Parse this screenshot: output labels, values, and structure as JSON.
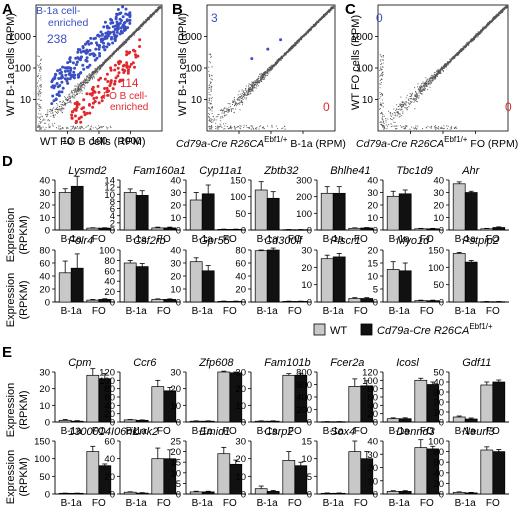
{
  "colors": {
    "blue": "#3a4fc4",
    "red": "#e0282e",
    "gray": "#c8c8c8",
    "black": "#111111",
    "dots": "#555555"
  },
  "scatter_axis": {
    "ticks": [
      "10",
      "100",
      "1000"
    ],
    "y_tick_label": "1000",
    "x_ticks_a": [
      "10",
      "100",
      "1000"
    ]
  },
  "panels": {
    "A": {
      "letter": "A",
      "ylabel": "WT B-1a cells (RPM)",
      "xlabel": "WT FO B cells (RPM)",
      "upper_count": "238",
      "lower_count": "114",
      "upper_note_1": "B-1a cell-",
      "upper_note_2": "enriched",
      "lower_note_1": "114",
      "lower_note_2": "FO B cell-",
      "lower_note_3": "enriched"
    },
    "B": {
      "letter": "B",
      "ylabel": "WT B-1a cells (RPM)",
      "xlabel_1": "Cd79a-Cre R26CA",
      "xlabel_sup": "Ebf1/+",
      "xlabel_2": " B-1a (RPM)",
      "upper_count": "3",
      "lower_count": "0"
    },
    "C": {
      "letter": "C",
      "ylabel": "WT FO cells (RPM)",
      "xlabel_1": "Cd79a-Cre R26CA",
      "xlabel_sup": "Ebf1/+",
      "xlabel_2": " FO (RPM)",
      "upper_count": "0",
      "lower_count": "0"
    },
    "D": {
      "letter": "D",
      "ylabel_1": "Expression",
      "ylabel_2": "(RPKM)"
    },
    "E": {
      "letter": "E",
      "ylabel_1": "Expression",
      "ylabel_2": "(RPKM)"
    }
  },
  "legend": {
    "wt": "WT",
    "mut_1": "Cd79a-Cre R26CA",
    "mut_sup": "Ebf1/+"
  },
  "group_labels": [
    "B-1a",
    "FO"
  ],
  "chart_data": [
    {
      "panel": "A",
      "type": "scatter",
      "xlabel": "WT FO B cells (RPM)",
      "ylabel": "WT B-1a cells (RPM)",
      "log": true,
      "xlim": [
        1,
        10000
      ],
      "ylim": [
        1,
        10000
      ],
      "series": [
        {
          "name": "B-1a cell-enriched",
          "count": 238
        },
        {
          "name": "FO B cell-enriched",
          "count": 114
        }
      ]
    },
    {
      "panel": "B",
      "type": "scatter",
      "log": true,
      "xlim": [
        1,
        10000
      ],
      "ylim": [
        1,
        10000
      ],
      "up": 3,
      "down": 0
    },
    {
      "panel": "C",
      "type": "scatter",
      "log": true,
      "xlim": [
        1,
        10000
      ],
      "ylim": [
        1,
        10000
      ],
      "up": 0,
      "down": 0
    },
    {
      "panel": "D",
      "type": "bar",
      "categories": [
        "B-1a",
        "FO"
      ],
      "series_names": [
        "WT",
        "Cd79a-Cre R26CA Ebf1/+"
      ],
      "genes": [
        {
          "name": "Lysmd2",
          "ymax": 40,
          "ticks": [
            0,
            10,
            20,
            30,
            40
          ],
          "wt": [
            30,
            1.5
          ],
          "mut": [
            35,
            1.5
          ],
          "wt_err": [
            3,
            0.3
          ],
          "mut_err": [
            8,
            0.3
          ]
        },
        {
          "name": "Fam160a1",
          "ymax": 14,
          "ticks": [
            0,
            2,
            4,
            6,
            8,
            10,
            12,
            14
          ],
          "wt": [
            10.5,
            0.6
          ],
          "mut": [
            9.7,
            0.6
          ],
          "wt_err": [
            1,
            0.2
          ],
          "mut_err": [
            1.3,
            0.2
          ]
        },
        {
          "name": "Cyp11a1",
          "ymax": 40,
          "ticks": [
            0,
            10,
            20,
            30,
            40
          ],
          "wt": [
            24,
            0.5
          ],
          "mut": [
            29,
            0.5
          ],
          "wt_err": [
            6,
            0.2
          ],
          "mut_err": [
            7,
            0.2
          ]
        },
        {
          "name": "Zbtb32",
          "ymax": 150,
          "ticks": [
            0,
            50,
            100,
            150
          ],
          "wt": [
            120,
            1
          ],
          "mut": [
            95,
            1
          ],
          "wt_err": [
            25,
            0.5
          ],
          "mut_err": [
            20,
            0.5
          ]
        },
        {
          "name": "Bhlhe41",
          "ymax": 300,
          "ticks": [
            0,
            100,
            200,
            300
          ],
          "wt": [
            220,
            10
          ],
          "mut": [
            220,
            12
          ],
          "wt_err": [
            40,
            3
          ],
          "mut_err": [
            40,
            3
          ]
        },
        {
          "name": "Tbc1d9",
          "ymax": 40,
          "ticks": [
            0,
            10,
            20,
            30,
            40
          ],
          "wt": [
            27,
            1
          ],
          "mut": [
            29,
            1
          ],
          "wt_err": [
            4,
            0.3
          ],
          "mut_err": [
            3,
            0.3
          ]
        },
        {
          "name": "Ahr",
          "ymax": 40,
          "ticks": [
            0,
            10,
            20,
            30,
            40
          ],
          "wt": [
            37,
            1
          ],
          "mut": [
            30,
            2
          ],
          "wt_err": [
            1.5,
            0.3
          ],
          "mut_err": [
            1,
            0.5
          ]
        },
        {
          "name": "Folr4",
          "ymax": 80,
          "ticks": [
            0,
            20,
            40,
            60,
            80
          ],
          "wt": [
            45,
            3
          ],
          "mut": [
            52,
            4
          ],
          "wt_err": [
            18,
            1
          ],
          "mut_err": [
            22,
            1
          ]
        },
        {
          "name": "Csf2rb",
          "ymax": 100,
          "ticks": [
            0,
            20,
            40,
            60,
            80,
            100
          ],
          "wt": [
            75,
            5
          ],
          "mut": [
            68,
            5
          ],
          "wt_err": [
            5,
            1
          ],
          "mut_err": [
            6,
            1
          ]
        },
        {
          "name": "Gpr55",
          "ymax": 40,
          "ticks": [
            0,
            10,
            20,
            30,
            40
          ],
          "wt": [
            31,
            0.5
          ],
          "mut": [
            24,
            0.5
          ],
          "wt_err": [
            3,
            0.2
          ],
          "mut_err": [
            4,
            0.2
          ]
        },
        {
          "name": "Cd300lf",
          "ymax": 80,
          "ticks": [
            0,
            20,
            40,
            60,
            80
          ],
          "wt": [
            79,
            1
          ],
          "mut": [
            80,
            1
          ],
          "wt_err": [
            1,
            0.3
          ],
          "mut_err": [
            3,
            0.3
          ]
        },
        {
          "name": "Plscr1",
          "ymax": 30,
          "ticks": [
            0,
            10,
            20,
            30
          ],
          "wt": [
            25,
            2
          ],
          "mut": [
            26,
            2
          ],
          "wt_err": [
            2,
            0.5
          ],
          "mut_err": [
            2,
            0.5
          ]
        },
        {
          "name": "Myo1d",
          "ymax": 20,
          "ticks": [
            0,
            5,
            10,
            15,
            20
          ],
          "wt": [
            12.5,
            0.5
          ],
          "mut": [
            12,
            0.5
          ],
          "wt_err": [
            3,
            0.2
          ],
          "mut_err": [
            3,
            0.2
          ]
        },
        {
          "name": "Pstpip2",
          "ymax": 150,
          "ticks": [
            0,
            50,
            100,
            150
          ],
          "wt": [
            140,
            1
          ],
          "mut": [
            115,
            1
          ],
          "wt_err": [
            3,
            0.5
          ],
          "mut_err": [
            5,
            0.5
          ]
        }
      ]
    },
    {
      "panel": "E",
      "type": "bar",
      "categories": [
        "B-1a",
        "FO"
      ],
      "series_names": [
        "WT",
        "Cd79a-Cre R26CA Ebf1/+"
      ],
      "genes": [
        {
          "name": "Cpm",
          "ymax": 30,
          "ticks": [
            0,
            10,
            20,
            30
          ],
          "wt": [
            1,
            28
          ],
          "mut": [
            0.5,
            26
          ],
          "wt_err": [
            0.5,
            4
          ],
          "mut_err": [
            0.3,
            3
          ]
        },
        {
          "name": "Ccr6",
          "ymax": 120,
          "ticks": [
            0,
            20,
            40,
            60,
            80,
            100,
            120
          ],
          "wt": [
            5,
            85
          ],
          "mut": [
            4,
            75
          ],
          "wt_err": [
            1,
            15
          ],
          "mut_err": [
            1,
            8
          ]
        },
        {
          "name": "Zfp608",
          "ymax": 30,
          "ticks": [
            0,
            10,
            20,
            30
          ],
          "wt": [
            0.5,
            30
          ],
          "mut": [
            0.5,
            29.5
          ],
          "wt_err": [
            0.2,
            0.5
          ],
          "mut_err": [
            0.2,
            0.5
          ]
        },
        {
          "name": "Fam101b",
          "ymax": 30,
          "ticks": [
            0,
            10,
            20,
            30
          ],
          "wt": [
            0.5,
            28
          ],
          "mut": [
            0.5,
            28
          ],
          "wt_err": [
            0.2,
            1
          ],
          "mut_err": [
            0.2,
            1
          ]
        },
        {
          "name": "Fcer2a",
          "ymax": 800,
          "ticks": [
            0,
            200,
            400,
            600,
            800
          ],
          "wt": [
            5,
            570
          ],
          "mut": [
            5,
            580
          ],
          "wt_err": [
            2,
            120
          ],
          "mut_err": [
            2,
            80
          ]
        },
        {
          "name": "Icosl",
          "ymax": 120,
          "ticks": [
            0,
            20,
            40,
            60,
            80,
            100,
            120
          ],
          "wt": [
            8,
            100
          ],
          "mut": [
            8,
            90
          ],
          "wt_err": [
            2,
            5
          ],
          "mut_err": [
            2,
            6
          ]
        },
        {
          "name": "Gdf11",
          "ymax": 50,
          "ticks": [
            0,
            10,
            20,
            30,
            40,
            50
          ],
          "wt": [
            5,
            37
          ],
          "mut": [
            3,
            40
          ],
          "wt_err": [
            1,
            3
          ],
          "mut_err": [
            1,
            2
          ]
        },
        {
          "name": "1300014I06rik",
          "ymax": 150,
          "ticks": [
            0,
            50,
            100,
            150
          ],
          "wt": [
            2,
            120
          ],
          "mut": [
            2,
            80
          ],
          "wt_err": [
            0.5,
            15
          ],
          "mut_err": [
            0.5,
            5
          ]
        },
        {
          "name": "Lrrk2",
          "ymax": 60,
          "ticks": [
            0,
            20,
            40,
            60
          ],
          "wt": [
            2,
            40
          ],
          "mut": [
            1,
            40
          ],
          "wt_err": [
            0.5,
            12
          ],
          "mut_err": [
            0.5,
            10
          ]
        },
        {
          "name": "Emid1",
          "ymax": 25,
          "ticks": [
            0,
            5,
            10,
            15,
            20,
            25
          ],
          "wt": [
            1,
            19
          ],
          "mut": [
            1,
            14
          ],
          "wt_err": [
            0.3,
            3
          ],
          "mut_err": [
            0.3,
            2
          ]
        },
        {
          "name": "Csrp2",
          "ymax": 30,
          "ticks": [
            0,
            10,
            20,
            30
          ],
          "wt": [
            3,
            19
          ],
          "mut": [
            1.5,
            16
          ],
          "wt_err": [
            1.5,
            5
          ],
          "mut_err": [
            0.5,
            2
          ]
        },
        {
          "name": "Sox4",
          "ymax": 15,
          "ticks": [
            0,
            5,
            10,
            15
          ],
          "wt": [
            0.2,
            12
          ],
          "mut": [
            0.2,
            10
          ],
          "wt_err": [
            0.1,
            3
          ],
          "mut_err": [
            0.1,
            2
          ]
        },
        {
          "name": "Dennd3",
          "ymax": 40,
          "ticks": [
            0,
            10,
            20,
            30,
            40
          ],
          "wt": [
            2,
            35
          ],
          "mut": [
            2,
            34
          ],
          "wt_err": [
            0.5,
            6
          ],
          "mut_err": [
            0.5,
            2
          ]
        },
        {
          "name": "Neurl3",
          "ymax": 100,
          "ticks": [
            0,
            20,
            40,
            60,
            80,
            100
          ],
          "wt": [
            3,
            83
          ],
          "mut": [
            2,
            80
          ],
          "wt_err": [
            1,
            6
          ],
          "mut_err": [
            1,
            4
          ]
        }
      ]
    }
  ]
}
